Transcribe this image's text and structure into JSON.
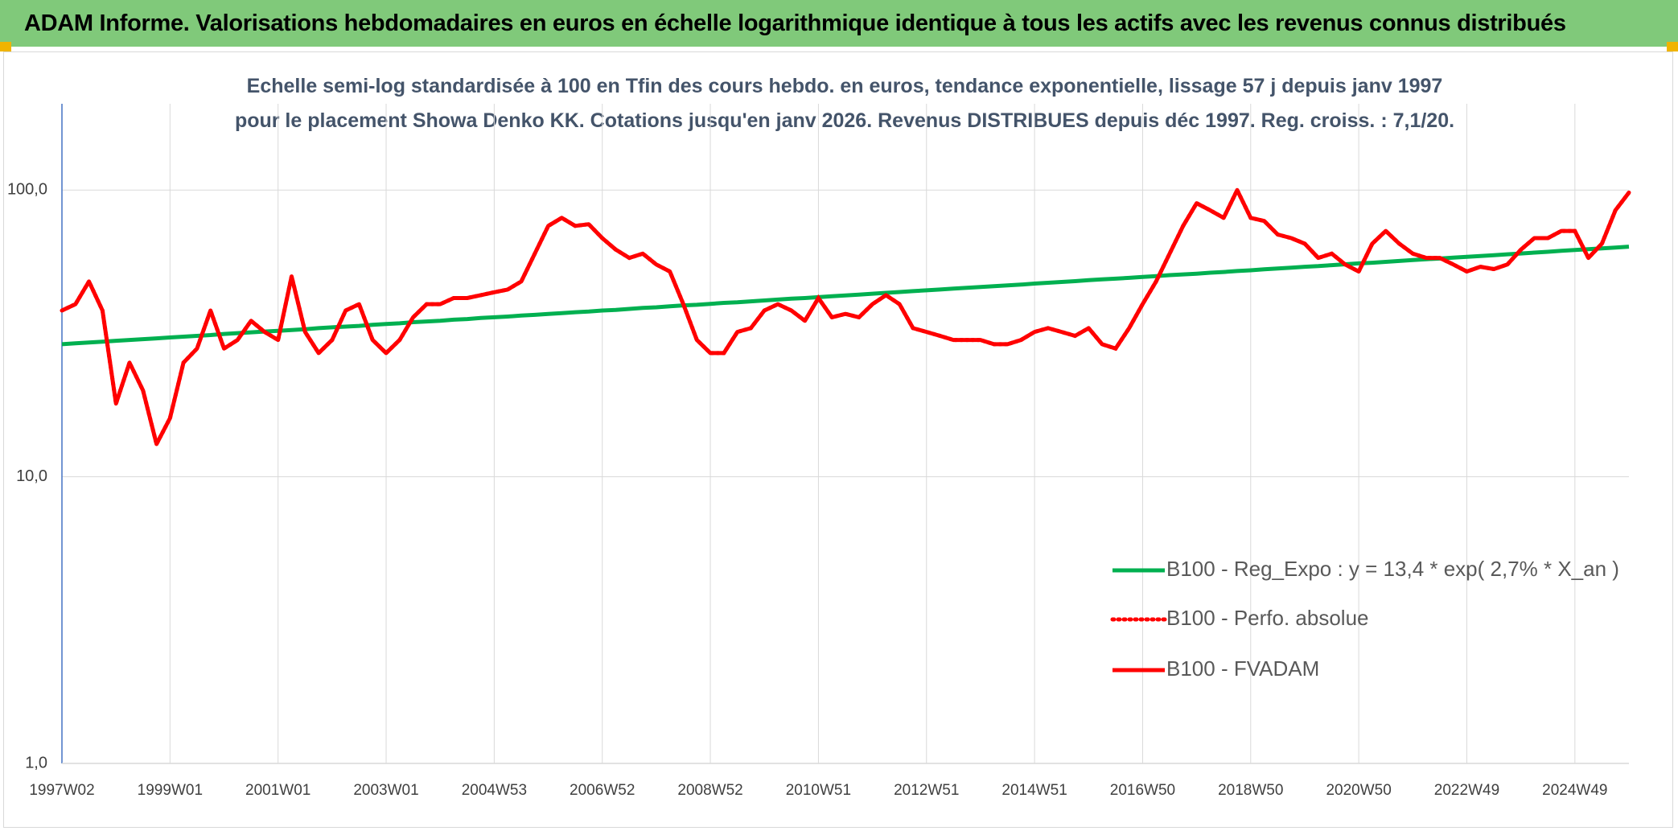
{
  "chart_data": {
    "type": "line",
    "title": "ADAM Informe. Valorisations hebdomadaires en euros en échelle logarithmique identique à tous les actifs avec les revenus connus distribués",
    "subtitle": "Echelle semi-log standardisée à 100 en Tfin des cours hebdo. en euros, tendance exponentielle, lissage 57 j depuis janv 1997 pour le placement Showa Denko KK. Cotations jusqu'en janv 2026. Revenus DISTRIBUES depuis déc 1997. Reg. croiss. : 7,1/20.",
    "yscale": "log",
    "ylim": [
      1,
      200
    ],
    "yticks": [
      {
        "value": 1,
        "label": "1,0"
      },
      {
        "value": 10,
        "label": "10,0"
      },
      {
        "value": 100,
        "label": "100,0"
      }
    ],
    "grid": true,
    "legend": "lower right",
    "categories": [
      "1997W02",
      null,
      null,
      null,
      null,
      null,
      null,
      null,
      "1999W01",
      null,
      null,
      null,
      null,
      null,
      null,
      null,
      "2001W01",
      null,
      null,
      null,
      null,
      null,
      null,
      null,
      "2003W01",
      null,
      null,
      null,
      null,
      null,
      null,
      null,
      "2004W53",
      null,
      null,
      null,
      null,
      null,
      null,
      null,
      "2006W52",
      null,
      null,
      null,
      null,
      null,
      null,
      null,
      "2008W52",
      null,
      null,
      null,
      null,
      null,
      null,
      null,
      "2010W51",
      null,
      null,
      null,
      null,
      null,
      null,
      null,
      "2012W51",
      null,
      null,
      null,
      null,
      null,
      null,
      null,
      "2014W51",
      null,
      null,
      null,
      null,
      null,
      null,
      null,
      "2016W50",
      null,
      null,
      null,
      null,
      null,
      null,
      null,
      "2018W50",
      null,
      null,
      null,
      null,
      null,
      null,
      null,
      "2020W50",
      null,
      null,
      null,
      null,
      null,
      null,
      null,
      "2022W49",
      null,
      null,
      null,
      null,
      null,
      null,
      null,
      "2024W49",
      null,
      null,
      null,
      null
    ],
    "series": [
      {
        "name": "B100 - Reg_Expo : y = 13,4 * exp( 2,7% *  X_an )",
        "color": "#00b050",
        "style": "solid",
        "values": [
          29.0,
          29.2,
          29.4,
          29.6,
          29.8,
          30.0,
          30.2,
          30.4,
          30.6,
          30.8,
          31.0,
          31.2,
          31.5,
          31.7,
          31.9,
          32.1,
          32.3,
          32.5,
          32.7,
          33.0,
          33.2,
          33.4,
          33.6,
          33.9,
          34.1,
          34.3,
          34.6,
          34.8,
          35.0,
          35.3,
          35.5,
          35.8,
          36.0,
          36.2,
          36.5,
          36.7,
          37.0,
          37.2,
          37.5,
          37.7,
          38.0,
          38.2,
          38.5,
          38.8,
          39.0,
          39.3,
          39.6,
          39.8,
          40.1,
          40.4,
          40.6,
          40.9,
          41.2,
          41.5,
          41.8,
          42.0,
          42.3,
          42.6,
          42.9,
          43.2,
          43.5,
          43.8,
          44.1,
          44.4,
          44.7,
          45.0,
          45.3,
          45.6,
          45.9,
          46.2,
          46.5,
          46.8,
          47.2,
          47.5,
          47.8,
          48.1,
          48.5,
          48.8,
          49.1,
          49.4,
          49.8,
          50.1,
          50.5,
          50.8,
          51.1,
          51.5,
          51.8,
          52.2,
          52.5,
          52.9,
          53.3,
          53.6,
          54.0,
          54.3,
          54.7,
          55.1,
          55.5,
          55.8,
          56.2,
          56.6,
          57.0,
          57.4,
          57.7,
          58.1,
          58.5,
          58.9,
          59.3,
          59.7,
          60.1,
          60.5,
          60.9,
          61.4,
          61.8,
          62.2,
          62.6,
          63.0,
          63.5
        ]
      },
      {
        "name": "B100 - Perfo. absolue",
        "color": "#ff0000",
        "style": "dotted",
        "values": [
          38,
          40,
          48,
          38,
          18,
          25,
          20,
          13,
          16,
          25,
          28,
          38,
          28,
          30,
          35,
          32,
          30,
          50,
          32,
          27,
          30,
          38,
          40,
          30,
          27,
          30,
          36,
          40,
          40,
          42,
          42,
          43,
          44,
          45,
          48,
          60,
          75,
          80,
          75,
          76,
          68,
          62,
          58,
          60,
          55,
          52,
          40,
          30,
          27,
          27,
          32,
          33,
          38,
          40,
          38,
          35,
          42,
          36,
          37,
          36,
          40,
          43,
          40,
          33,
          32,
          31,
          30,
          30,
          30,
          29,
          29,
          30,
          32,
          33,
          32,
          31,
          33,
          29,
          28,
          33,
          40,
          48,
          60,
          75,
          90,
          85,
          80,
          100,
          80,
          78,
          70,
          68,
          65,
          58,
          60,
          55,
          52,
          65,
          72,
          65,
          60,
          58,
          58,
          55,
          52,
          54,
          53,
          55,
          62,
          68,
          68,
          72,
          72,
          58,
          65,
          85,
          98
        ]
      },
      {
        "name": "B100 - FVADAM",
        "color": "#ff0000",
        "style": "solid",
        "values": [
          38,
          40,
          48,
          38,
          18,
          25,
          20,
          13,
          16,
          25,
          28,
          38,
          28,
          30,
          35,
          32,
          30,
          50,
          32,
          27,
          30,
          38,
          40,
          30,
          27,
          30,
          36,
          40,
          40,
          42,
          42,
          43,
          44,
          45,
          48,
          60,
          75,
          80,
          75,
          76,
          68,
          62,
          58,
          60,
          55,
          52,
          40,
          30,
          27,
          27,
          32,
          33,
          38,
          40,
          38,
          35,
          42,
          36,
          37,
          36,
          40,
          43,
          40,
          33,
          32,
          31,
          30,
          30,
          30,
          29,
          29,
          30,
          32,
          33,
          32,
          31,
          33,
          29,
          28,
          33,
          40,
          48,
          60,
          75,
          90,
          85,
          80,
          100,
          80,
          78,
          70,
          68,
          65,
          58,
          60,
          55,
          52,
          65,
          72,
          65,
          60,
          58,
          58,
          55,
          52,
          54,
          53,
          55,
          62,
          68,
          68,
          72,
          72,
          58,
          65,
          85,
          98
        ]
      }
    ]
  }
}
